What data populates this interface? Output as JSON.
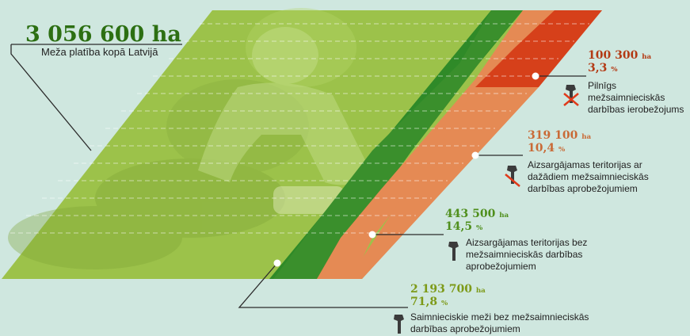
{
  "total": {
    "value": "3 056 600",
    "unit": "ha",
    "label": "Meža platība kopā Latvijā"
  },
  "categories": [
    {
      "key": "strict",
      "area": "100 300",
      "area_unit": "ha",
      "percent": "3,3",
      "percent_unit": "%",
      "label_lines": [
        "Pilnīgs mežsaimnieciskās",
        "darbības ierobežojums"
      ],
      "color": "#d6401a",
      "icon": "axe-crossed-icon"
    },
    {
      "key": "restricted",
      "area": "319 100",
      "area_unit": "ha",
      "percent": "10,4",
      "percent_unit": "%",
      "label_lines": [
        "Aizsargājamas teritorijas ar",
        "dažādiem mežsaimnieciskās",
        "darbības aprobežojumiem"
      ],
      "color": "#e58a54",
      "icon": "axe-crossed-icon"
    },
    {
      "key": "protected-unrestricted",
      "area": "443 500",
      "area_unit": "ha",
      "percent": "14,5",
      "percent_unit": "%",
      "label_lines": [
        "Aizsargājamas teritorijas bez",
        "mežsaimnieciskās darbības",
        "aprobežojumiem"
      ],
      "color": "#3a8f2c",
      "icon": "axe-icon"
    },
    {
      "key": "commercial",
      "area": "2 193 700",
      "area_unit": "ha",
      "percent": "71,8",
      "percent_unit": "%",
      "label_lines": [
        "Saimnieciskie meži bez mežsaimnieciskās",
        "darbības aprobežojumiem"
      ],
      "color": "#9cc24a",
      "icon": "axe-icon"
    }
  ],
  "colors": {
    "background": "#cfe7df",
    "dark_green": "#2c6f12",
    "red": "#d6401a",
    "orange": "#e58a54",
    "green": "#3a8f2c",
    "light_green": "#9cc24a"
  }
}
